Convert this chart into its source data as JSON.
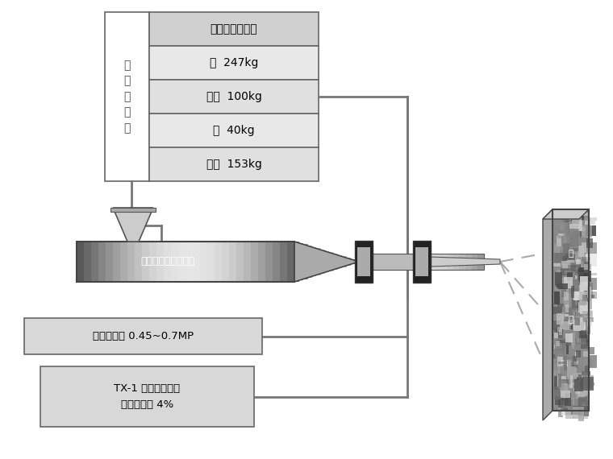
{
  "bg_color": "#ffffff",
  "title_text": "可参考的配合比",
  "rows": [
    "砂  247kg",
    "水泥  100kg",
    "水  40kg",
    "石子  153kg"
  ],
  "left_label": "混\n凝\n土\n拌\n合",
  "machine_label": "湿喷式混凝土喷射机",
  "wind_label": "风压控制在 0.45~0.7MP",
  "tx_label": "TX-1 型液体速凝剂\n水泥用量的 4%",
  "rock_label_top": "岩",
  "rock_label_bot": "面",
  "connector_color": "#888888",
  "table_fill_header": "#d8d8d8",
  "table_fill_row": "#e8e8e8",
  "box_fill": "#e0e0e0"
}
